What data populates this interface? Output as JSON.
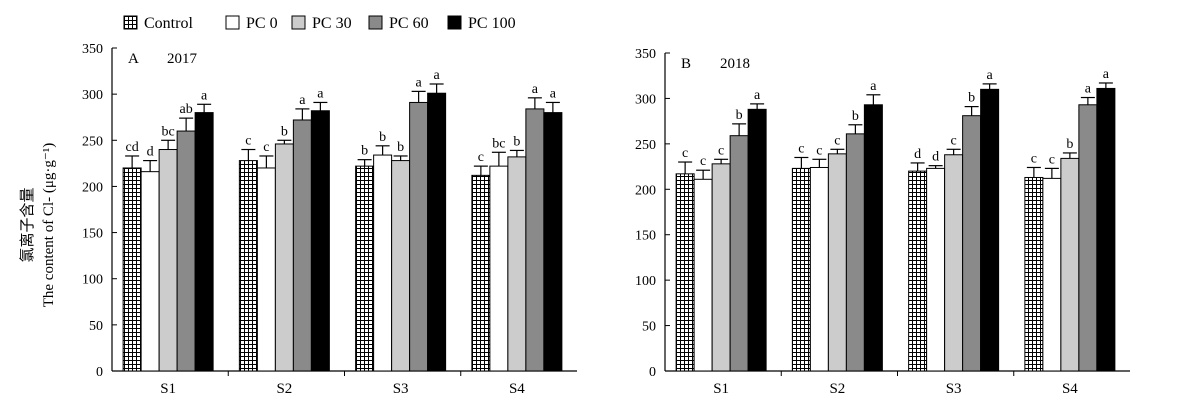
{
  "legend": [
    {
      "name": "Control",
      "pattern": "grid"
    },
    {
      "name": "PC 0",
      "pattern": "white"
    },
    {
      "name": "PC 30",
      "pattern": "lightgray"
    },
    {
      "name": "PC 60",
      "pattern": "darkgray"
    },
    {
      "name": "PC 100",
      "pattern": "black"
    }
  ],
  "y_axis_label_zh": "氯离子含量",
  "y_axis_label_en": "The content of Cl- (μg·g⁻¹)",
  "colors": {
    "pc0": "#ffffff",
    "pc30": "#cccccc",
    "pc60": "#8a8a8a",
    "pc100": "#000000",
    "grid_pattern": "#000000"
  },
  "chart_data": [
    {
      "type": "bar",
      "panel": "A",
      "year": "2017",
      "categories": [
        "S1",
        "S2",
        "S3",
        "S4"
      ],
      "ylim": [
        0,
        350
      ],
      "yticks": [
        0,
        50,
        100,
        150,
        200,
        250,
        300,
        350
      ],
      "series": [
        {
          "name": "Control",
          "values": [
            220,
            228,
            222,
            212
          ],
          "errors": [
            13,
            12,
            7,
            10
          ],
          "letters": [
            "cd",
            "c",
            "b",
            "c"
          ]
        },
        {
          "name": "PC 0",
          "values": [
            216,
            220,
            234,
            222
          ],
          "errors": [
            12,
            13,
            10,
            15
          ],
          "letters": [
            "d",
            "c",
            "b",
            "bc"
          ]
        },
        {
          "name": "PC 30",
          "values": [
            240,
            246,
            228,
            232
          ],
          "errors": [
            10,
            4,
            5,
            7
          ],
          "letters": [
            "bc",
            "b",
            "b",
            "b"
          ]
        },
        {
          "name": "PC 60",
          "values": [
            260,
            272,
            291,
            284
          ],
          "errors": [
            14,
            12,
            12,
            12
          ],
          "letters": [
            "ab",
            "a",
            "a",
            "a"
          ]
        },
        {
          "name": "PC 100",
          "values": [
            280,
            282,
            301,
            280
          ],
          "errors": [
            9,
            9,
            10,
            11
          ],
          "letters": [
            "a",
            "a",
            "a",
            "a"
          ]
        }
      ]
    },
    {
      "type": "bar",
      "panel": "B",
      "year": "2018",
      "categories": [
        "S1",
        "S2",
        "S3",
        "S4"
      ],
      "ylim": [
        0,
        350
      ],
      "yticks": [
        0,
        50,
        100,
        150,
        200,
        250,
        300,
        350
      ],
      "series": [
        {
          "name": "Control",
          "values": [
            217,
            223,
            220,
            213
          ],
          "errors": [
            13,
            12,
            9,
            11
          ],
          "letters": [
            "c",
            "c",
            "d",
            "c"
          ]
        },
        {
          "name": "PC 0",
          "values": [
            211,
            224,
            223,
            212
          ],
          "errors": [
            10,
            9,
            3,
            11
          ],
          "letters": [
            "c",
            "c",
            "d",
            "c"
          ]
        },
        {
          "name": "PC 30",
          "values": [
            228,
            239,
            238,
            234
          ],
          "errors": [
            5,
            5,
            6,
            6
          ],
          "letters": [
            "c",
            "c",
            "c",
            "b"
          ]
        },
        {
          "name": "PC 60",
          "values": [
            259,
            261,
            281,
            293
          ],
          "errors": [
            13,
            10,
            10,
            8
          ],
          "letters": [
            "b",
            "b",
            "b",
            "a"
          ]
        },
        {
          "name": "PC 100",
          "values": [
            288,
            293,
            310,
            311
          ],
          "errors": [
            6,
            11,
            6,
            6
          ],
          "letters": [
            "a",
            "a",
            "a",
            "a"
          ]
        }
      ]
    }
  ]
}
